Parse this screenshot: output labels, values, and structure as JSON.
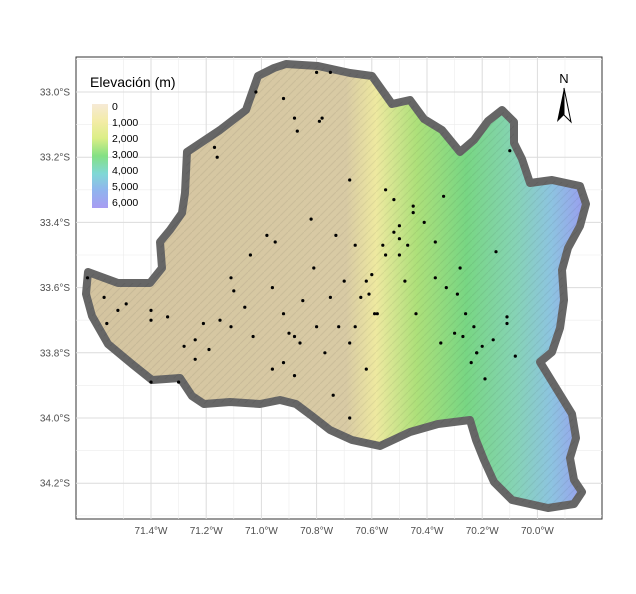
{
  "legend": {
    "title": "Elevación (m)",
    "entries": [
      "0",
      "1,000",
      "2,000",
      "3,000",
      "4,000",
      "5,000",
      "6,000"
    ],
    "colors": [
      "#f3e6cf",
      "#f0ee9a",
      "#d2ec82",
      "#7ee07f",
      "#7fd6d8",
      "#8fb3ee",
      "#a79cf2"
    ]
  },
  "north_arrow": {
    "label": "N",
    "icon": "north-arrow-icon"
  },
  "axes": {
    "x_ticks": [
      "71.4°W",
      "71.2°W",
      "71.0°W",
      "70.8°W",
      "70.6°W",
      "70.4°W",
      "70.2°W",
      "70.0°W"
    ],
    "y_ticks": [
      "33.0°S",
      "33.2°S",
      "33.4°S",
      "33.6°S",
      "33.8°S",
      "34.0°S",
      "34.2°S"
    ]
  },
  "chart_data": {
    "type": "scatter",
    "title": "",
    "xlabel": "",
    "ylabel": "",
    "xlim": [
      -71.65,
      69.86
    ],
    "ylim": [
      -34.32,
      -32.9
    ],
    "x_unit": "longitude (negative = °W)",
    "y_unit": "latitude (negative = °S)",
    "grid": true,
    "legend_position": "top-left",
    "series": [
      {
        "x": [
          -71.02,
          -70.92,
          -70.75,
          -70.8,
          -70.78,
          -70.88,
          -70.79,
          -70.87,
          -71.17,
          -70.98,
          -70.82,
          -70.68,
          -70.52,
          -70.45,
          -70.41,
          -70.37,
          -70.34,
          -70.45,
          -70.28,
          -70.15,
          -70.1,
          -70.33,
          -70.37,
          -70.29,
          -70.5,
          -70.52,
          -70.56,
          -70.5,
          -70.55,
          -70.48,
          -70.6,
          -70.73,
          -70.66,
          -70.62,
          -70.7,
          -70.81,
          -70.95,
          -71.04,
          -71.11,
          -71.4,
          -71.56,
          -71.49,
          -71.52,
          -71.4,
          -71.34,
          -71.21,
          -71.24,
          -71.11,
          -71.03,
          -71.06,
          -71.1,
          -71.15,
          -71.19,
          -71.24,
          -71.3,
          -70.96,
          -70.92,
          -70.9,
          -70.88,
          -70.85,
          -70.8,
          -70.75,
          -70.66,
          -70.68,
          -70.72,
          -70.59,
          -70.58,
          -70.61,
          -70.64,
          -70.44,
          -70.35,
          -70.3,
          -70.27,
          -70.22,
          -70.24,
          -70.16,
          -70.19,
          -70.11,
          -70.08,
          -70.2,
          -70.22,
          -70.11,
          -70.62,
          -70.68,
          -70.77,
          -70.86,
          -70.92,
          -70.96,
          -70.88,
          -70.74,
          -70.5,
          -70.47,
          -70.55,
          -70.26,
          -70.23,
          -71.28,
          -71.4,
          -71.57,
          -71.63,
          -71.16
        ],
        "y": [
          -33.0,
          -33.02,
          -32.94,
          -32.94,
          -33.08,
          -33.08,
          -33.09,
          -33.12,
          -33.17,
          -33.44,
          -33.39,
          -33.27,
          -33.33,
          -33.37,
          -33.4,
          -33.46,
          -33.32,
          -33.35,
          -33.54,
          -33.49,
          -33.18,
          -33.6,
          -33.57,
          -33.62,
          -33.41,
          -33.43,
          -33.47,
          -33.5,
          -33.5,
          -33.58,
          -33.56,
          -33.44,
          -33.47,
          -33.58,
          -33.58,
          -33.54,
          -33.46,
          -33.5,
          -33.57,
          -33.7,
          -33.71,
          -33.65,
          -33.67,
          -33.67,
          -33.69,
          -33.71,
          -33.76,
          -33.72,
          -33.75,
          -33.66,
          -33.61,
          -33.7,
          -33.79,
          -33.82,
          -33.89,
          -33.6,
          -33.68,
          -33.74,
          -33.75,
          -33.64,
          -33.72,
          -33.63,
          -33.72,
          -33.77,
          -33.72,
          -33.68,
          -33.68,
          -33.62,
          -33.63,
          -33.68,
          -33.77,
          -33.74,
          -33.75,
          -33.8,
          -33.83,
          -33.76,
          -33.88,
          -33.69,
          -33.81,
          -33.78,
          -33.8,
          -33.71,
          -33.85,
          -34.0,
          -33.8,
          -33.77,
          -33.83,
          -33.85,
          -33.87,
          -33.93,
          -33.45,
          -33.47,
          -33.3,
          -33.68,
          -33.72,
          -33.78,
          -33.89,
          -33.63,
          -33.57,
          -33.2
        ]
      }
    ]
  }
}
